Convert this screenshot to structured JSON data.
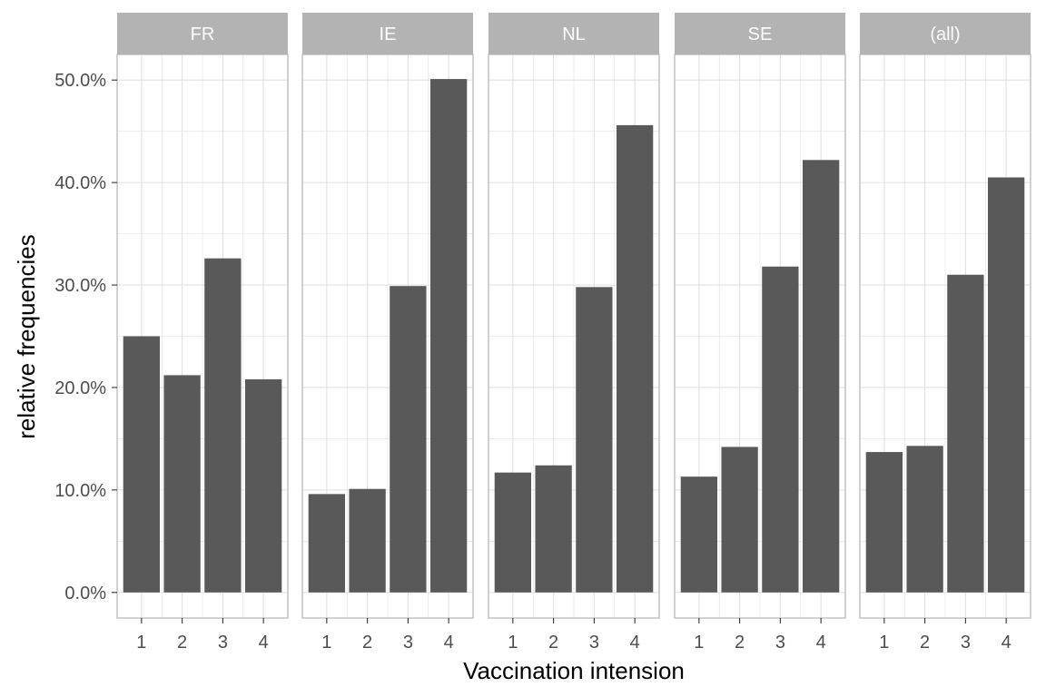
{
  "chart_data": {
    "type": "bar",
    "facet_by": "country",
    "panels": [
      {
        "label": "FR",
        "categories": [
          "1",
          "2",
          "3",
          "4"
        ],
        "values": [
          0.25,
          0.212,
          0.326,
          0.208
        ]
      },
      {
        "label": "IE",
        "categories": [
          "1",
          "2",
          "3",
          "4"
        ],
        "values": [
          0.096,
          0.101,
          0.299,
          0.501
        ]
      },
      {
        "label": "NL",
        "categories": [
          "1",
          "2",
          "3",
          "4"
        ],
        "values": [
          0.117,
          0.124,
          0.298,
          0.456
        ]
      },
      {
        "label": "SE",
        "categories": [
          "1",
          "2",
          "3",
          "4"
        ],
        "values": [
          0.113,
          0.142,
          0.318,
          0.422
        ]
      },
      {
        "label": "(all)",
        "categories": [
          "1",
          "2",
          "3",
          "4"
        ],
        "values": [
          0.137,
          0.143,
          0.31,
          0.405
        ]
      }
    ],
    "xlabel": "Vaccination intension",
    "ylabel": "relative frequencies",
    "yticks": [
      "0.0%",
      "10.0%",
      "20.0%",
      "30.0%",
      "40.0%",
      "50.0%"
    ],
    "ytick_values": [
      0,
      0.1,
      0.2,
      0.3,
      0.4,
      0.5
    ],
    "ylim": [
      -0.025,
      0.525
    ],
    "grid": true,
    "colors": {
      "bar": "#595959",
      "strip": "#b3b3b3",
      "grid": "#e0e0e0",
      "panel_border": "#b3b3b3",
      "tick_text": "#4d4d4d"
    }
  }
}
